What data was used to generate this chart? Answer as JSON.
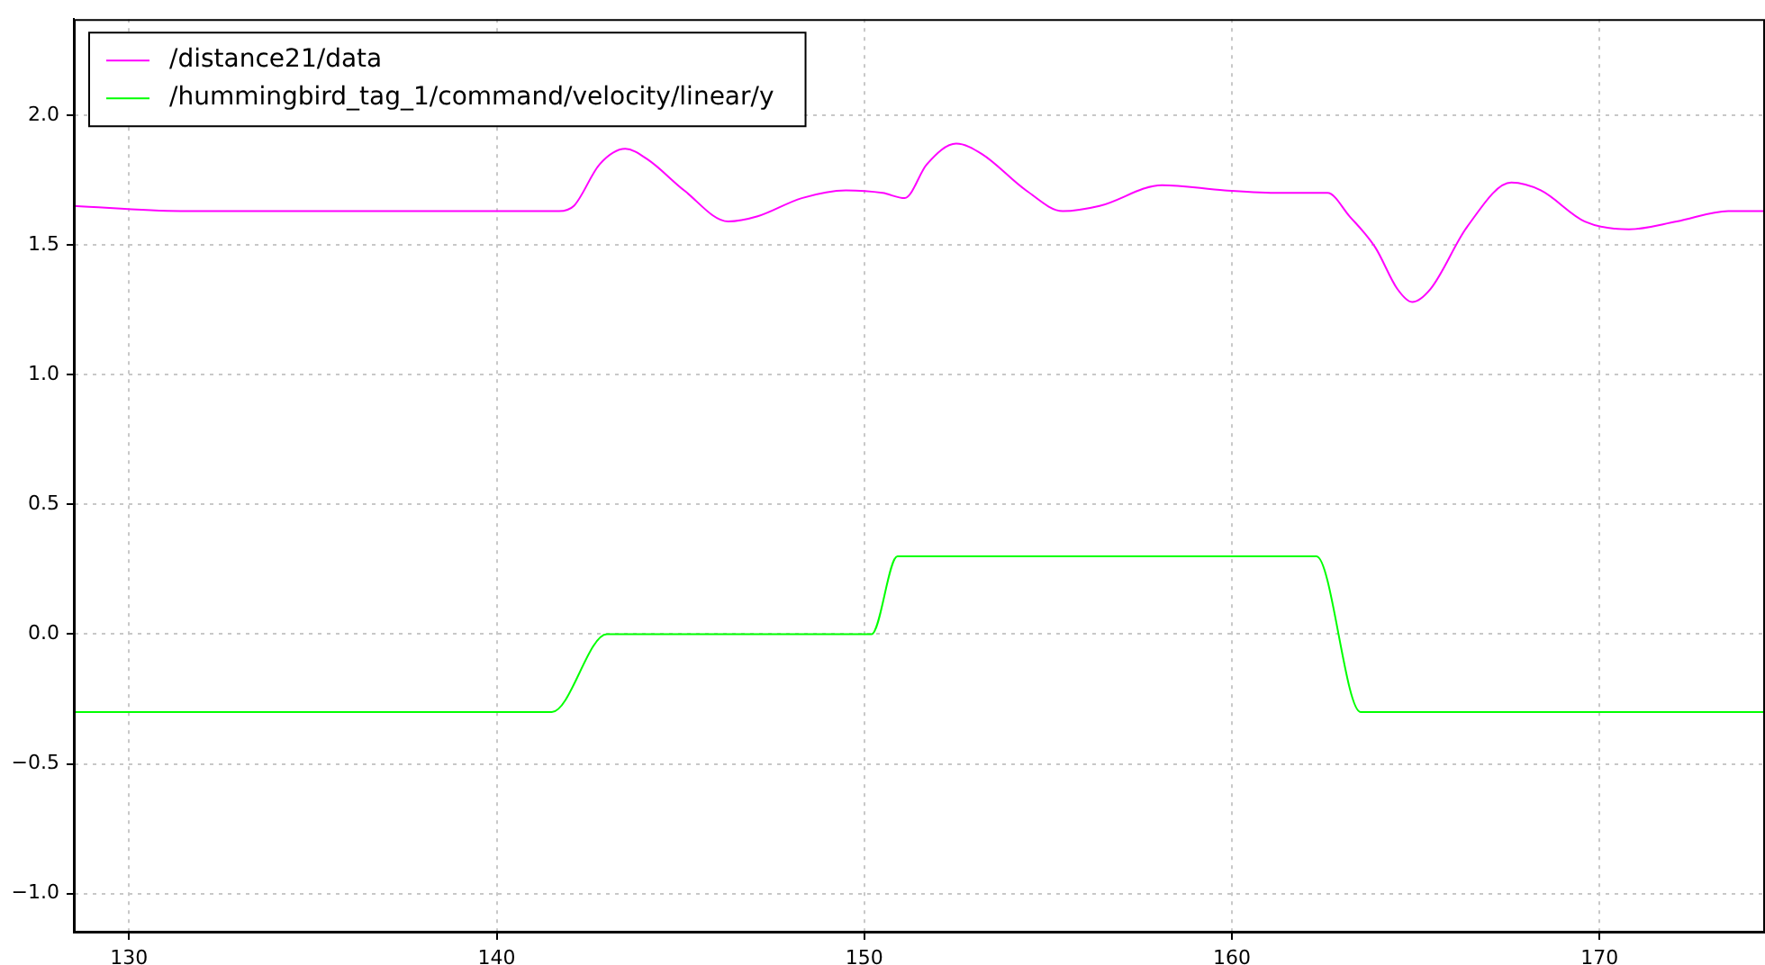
{
  "chart_data": {
    "type": "line",
    "legend": "top left",
    "grid": true,
    "marker": "none",
    "line_style": "solid",
    "xlim": [
      128.5,
      174.5
    ],
    "xticks": [
      130,
      140,
      150,
      160,
      170
    ],
    "ylim": [
      -1.15,
      2.37
    ],
    "yticks": [
      {
        "value": -1.0,
        "label": "−1.0"
      },
      {
        "value": -0.5,
        "label": "−0.5"
      },
      {
        "value": 0.0,
        "label": "0.0"
      },
      {
        "value": 0.5,
        "label": "0.5"
      },
      {
        "value": 1.0,
        "label": "1.0"
      },
      {
        "value": 1.5,
        "label": "1.5"
      },
      {
        "value": 2.0,
        "label": "2.0"
      }
    ],
    "series": [
      {
        "name": "/distance21/data",
        "color": "#ff00ff",
        "x": [
          128.5,
          131.4,
          136.3,
          139.2,
          141.7,
          142.1,
          142.8,
          143.5,
          144.1,
          145.1,
          146.3,
          147.1,
          148.3,
          149.5,
          150.5,
          151.1,
          151.7,
          152.5,
          153.2,
          154.4,
          155.4,
          156.4,
          158.1,
          159.8,
          161.3,
          162.6,
          163.2,
          163.9,
          164.5,
          164.9,
          165.4,
          166.4,
          167.6,
          168.4,
          169.6,
          170.8,
          172.1,
          173.5,
          174.5
        ],
        "values": [
          1.65,
          1.63,
          1.63,
          1.63,
          1.63,
          1.65,
          1.81,
          1.87,
          1.83,
          1.71,
          1.59,
          1.61,
          1.68,
          1.71,
          1.7,
          1.68,
          1.81,
          1.89,
          1.85,
          1.71,
          1.63,
          1.65,
          1.73,
          1.71,
          1.7,
          1.7,
          1.61,
          1.49,
          1.33,
          1.28,
          1.33,
          1.57,
          1.74,
          1.71,
          1.59,
          1.56,
          1.59,
          1.63,
          1.63
        ]
      },
      {
        "name": "/hummingbird_tag_1/command/velocity/linear/y",
        "color": "#00ff00",
        "x": [
          128.5,
          141.5,
          143.0,
          150.2,
          150.9,
          162.3,
          163.5,
          174.5
        ],
        "values": [
          -0.3,
          -0.3,
          0,
          0,
          0.3,
          0.3,
          -0.3,
          -0.3
        ]
      }
    ]
  }
}
